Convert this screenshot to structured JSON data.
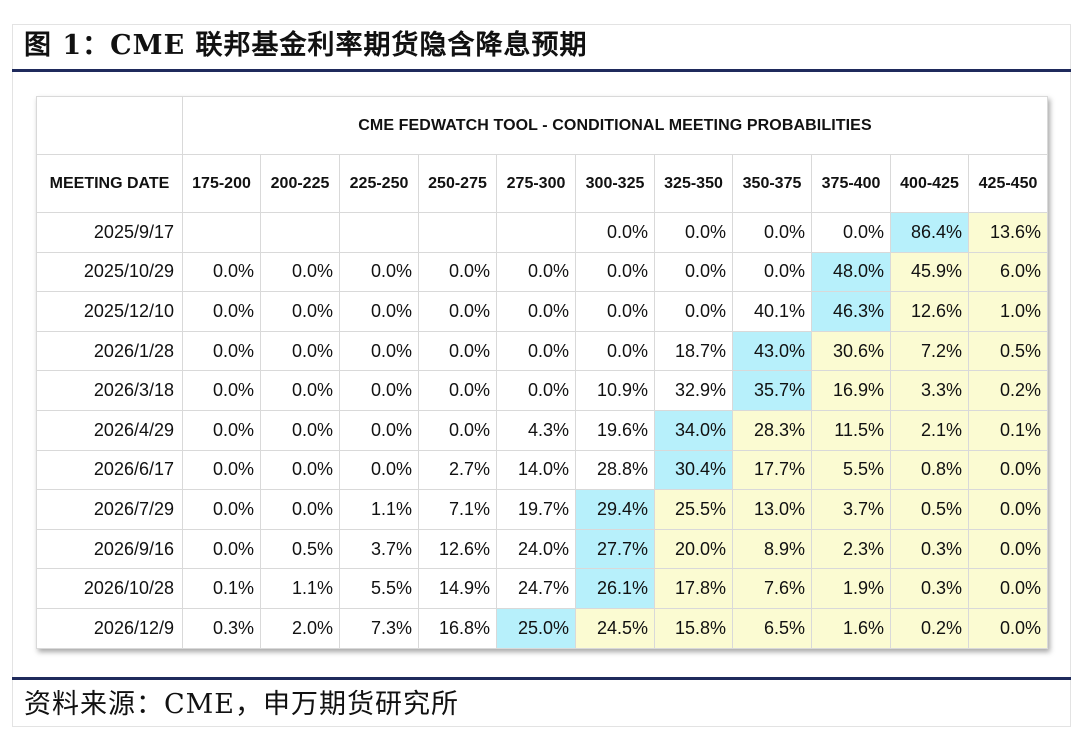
{
  "figure": {
    "title": "图 1：CME 联邦基金利率期货隐含降息预期",
    "source": "资料来源：CME，申万期货研究所"
  },
  "colors": {
    "rule": "#1f2a5c",
    "highest_probability_cell": "#b7f0fb",
    "above_highest_cell": "#fbfbd2"
  },
  "chart_data": {
    "type": "table",
    "title": "CME FEDWATCH TOOL - CONDITIONAL MEETING PROBABILITIES",
    "row_header": "MEETING DATE",
    "columns": [
      "175-200",
      "200-225",
      "225-250",
      "250-275",
      "275-300",
      "300-325",
      "325-350",
      "350-375",
      "375-400",
      "400-425",
      "425-450"
    ],
    "rows": [
      {
        "date": "2025/9/17",
        "values": [
          "",
          "",
          "",
          "",
          "",
          "0.0%",
          "0.0%",
          "0.0%",
          "0.0%",
          "86.4%",
          "13.6%"
        ],
        "highlight_col": 9
      },
      {
        "date": "2025/10/29",
        "values": [
          "0.0%",
          "0.0%",
          "0.0%",
          "0.0%",
          "0.0%",
          "0.0%",
          "0.0%",
          "0.0%",
          "48.0%",
          "45.9%",
          "6.0%"
        ],
        "highlight_col": 8
      },
      {
        "date": "2025/12/10",
        "values": [
          "0.0%",
          "0.0%",
          "0.0%",
          "0.0%",
          "0.0%",
          "0.0%",
          "0.0%",
          "40.1%",
          "46.3%",
          "12.6%",
          "1.0%"
        ],
        "highlight_col": 8
      },
      {
        "date": "2026/1/28",
        "values": [
          "0.0%",
          "0.0%",
          "0.0%",
          "0.0%",
          "0.0%",
          "0.0%",
          "18.7%",
          "43.0%",
          "30.6%",
          "7.2%",
          "0.5%"
        ],
        "highlight_col": 7
      },
      {
        "date": "2026/3/18",
        "values": [
          "0.0%",
          "0.0%",
          "0.0%",
          "0.0%",
          "0.0%",
          "10.9%",
          "32.9%",
          "35.7%",
          "16.9%",
          "3.3%",
          "0.2%"
        ],
        "highlight_col": 7
      },
      {
        "date": "2026/4/29",
        "values": [
          "0.0%",
          "0.0%",
          "0.0%",
          "0.0%",
          "4.3%",
          "19.6%",
          "34.0%",
          "28.3%",
          "11.5%",
          "2.1%",
          "0.1%"
        ],
        "highlight_col": 6
      },
      {
        "date": "2026/6/17",
        "values": [
          "0.0%",
          "0.0%",
          "0.0%",
          "2.7%",
          "14.0%",
          "28.8%",
          "30.4%",
          "17.7%",
          "5.5%",
          "0.8%",
          "0.0%"
        ],
        "highlight_col": 6
      },
      {
        "date": "2026/7/29",
        "values": [
          "0.0%",
          "0.0%",
          "1.1%",
          "7.1%",
          "19.7%",
          "29.4%",
          "25.5%",
          "13.0%",
          "3.7%",
          "0.5%",
          "0.0%"
        ],
        "highlight_col": 5
      },
      {
        "date": "2026/9/16",
        "values": [
          "0.0%",
          "0.5%",
          "3.7%",
          "12.6%",
          "24.0%",
          "27.7%",
          "20.0%",
          "8.9%",
          "2.3%",
          "0.3%",
          "0.0%"
        ],
        "highlight_col": 5
      },
      {
        "date": "2026/10/28",
        "values": [
          "0.1%",
          "1.1%",
          "5.5%",
          "14.9%",
          "24.7%",
          "26.1%",
          "17.8%",
          "7.6%",
          "1.9%",
          "0.3%",
          "0.0%"
        ],
        "highlight_col": 5
      },
      {
        "date": "2026/12/9",
        "values": [
          "0.3%",
          "2.0%",
          "7.3%",
          "16.8%",
          "25.0%",
          "24.5%",
          "15.8%",
          "6.5%",
          "1.6%",
          "0.2%",
          "0.0%"
        ],
        "highlight_col": 4
      }
    ]
  }
}
